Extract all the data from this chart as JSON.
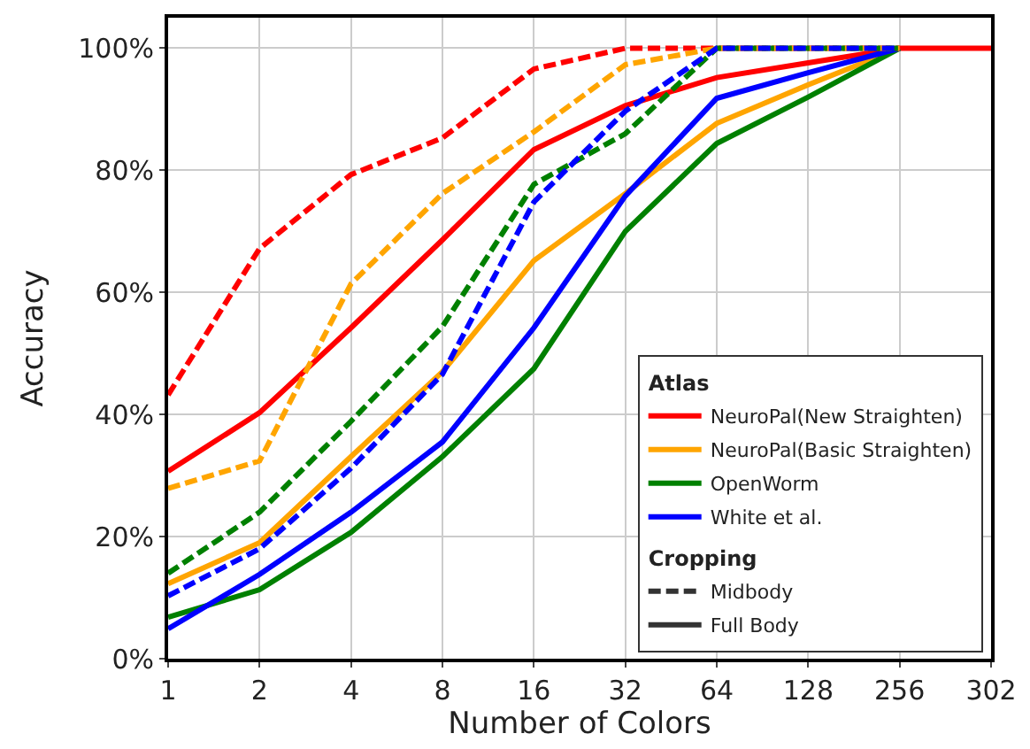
{
  "chart_data": {
    "type": "line",
    "xlabel": "Number of Colors",
    "ylabel": "Accuracy",
    "categories": [
      "1",
      "2",
      "4",
      "8",
      "16",
      "32",
      "64",
      "128",
      "256",
      "302"
    ],
    "ylim": [
      0,
      105
    ],
    "yticks": [
      {
        "value": 0,
        "label": "0%"
      },
      {
        "value": 20,
        "label": "20%"
      },
      {
        "value": 40,
        "label": "40%"
      },
      {
        "value": 60,
        "label": "60%"
      },
      {
        "value": 80,
        "label": "80%"
      },
      {
        "value": 100,
        "label": "100%"
      }
    ],
    "grid": true,
    "legend": "bottom right",
    "legend_title": [
      "Atlas",
      "Cropping"
    ],
    "series": [
      {
        "name": "NeuroPal(New Straighten)",
        "color": "#ff0000",
        "line_style": "solid",
        "values": [
          30.7,
          40.3,
          54.2,
          68.6,
          83.4,
          90.6,
          95.2,
          97.6,
          100,
          100
        ]
      },
      {
        "name": "NeuroPal(Basic Straighten)",
        "color": "#ffa500",
        "line_style": "solid",
        "values": [
          12.3,
          19,
          33.1,
          47,
          65.2,
          76.2,
          87.7,
          94,
          100,
          null
        ]
      },
      {
        "name": "OpenWorm",
        "color": "#008000",
        "line_style": "solid",
        "values": [
          6.8,
          11.3,
          20.7,
          33.1,
          47.5,
          70,
          84.4,
          92,
          100,
          null
        ]
      },
      {
        "name": "White et al.",
        "color": "#0000ff",
        "line_style": "solid",
        "values": [
          4.9,
          13.8,
          24,
          35.5,
          54.2,
          75.8,
          91.8,
          96,
          100,
          null
        ]
      },
      {
        "color": "#ff0000",
        "line_style": "dashed",
        "values": [
          43.2,
          67.2,
          79.3,
          85.3,
          96.6,
          100,
          100,
          100,
          100,
          null
        ]
      },
      {
        "color": "#ffa500",
        "line_style": "dashed",
        "values": [
          27.9,
          32.4,
          61.4,
          76.2,
          86.3,
          97.3,
          100,
          100,
          100,
          null
        ]
      },
      {
        "color": "#008000",
        "line_style": "dashed",
        "values": [
          14,
          24,
          38.9,
          54.4,
          77.7,
          86,
          100,
          100,
          100,
          null
        ]
      },
      {
        "color": "#0000ff",
        "line_style": "dashed",
        "values": [
          10.3,
          18,
          31.2,
          46.6,
          74.8,
          89.7,
          100,
          100,
          100,
          null
        ]
      },
      {
        "name": "Midbody",
        "color": "#333333",
        "line_style": "dashed",
        "values": [
          null,
          null,
          null,
          null,
          null,
          null,
          null,
          null,
          null,
          null
        ]
      },
      {
        "name": "Full Body",
        "color": "#333333",
        "line_style": "solid",
        "values": [
          null,
          null,
          null,
          null,
          null,
          null,
          null,
          null,
          null,
          null
        ]
      }
    ]
  }
}
